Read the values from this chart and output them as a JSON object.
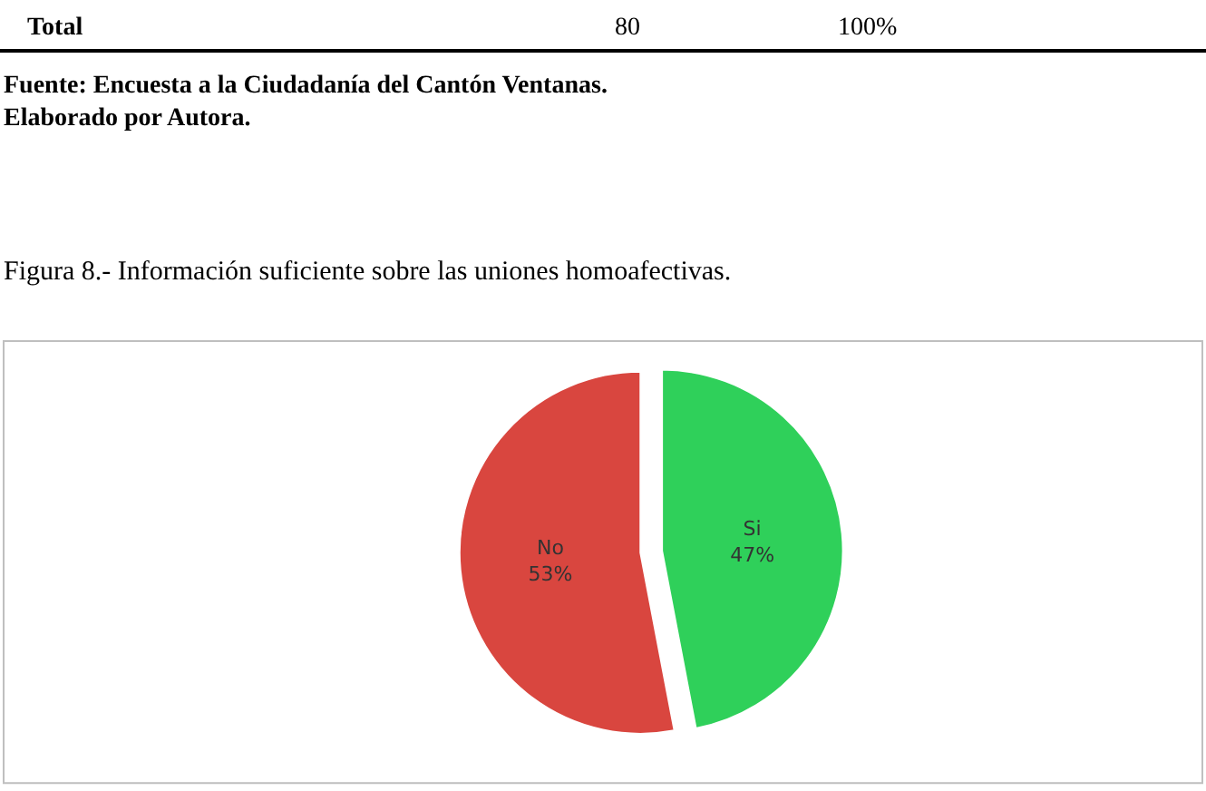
{
  "chart_data": {
    "type": "pie",
    "title": "Figura 8.- Información suficiente sobre las uniones homoafectivas.",
    "categories": [
      "Si",
      "No"
    ],
    "values": [
      47,
      53
    ],
    "value_labels": [
      "47%",
      "53%"
    ],
    "colors": [
      "#2fd05a",
      "#d9463f"
    ],
    "legend": false,
    "annotations": [
      "Total",
      "80",
      "100%",
      "Fuente: Encuesta a la Ciudadanía del Cantón Ventanas.",
      "Elaborado por Autora."
    ]
  }
}
